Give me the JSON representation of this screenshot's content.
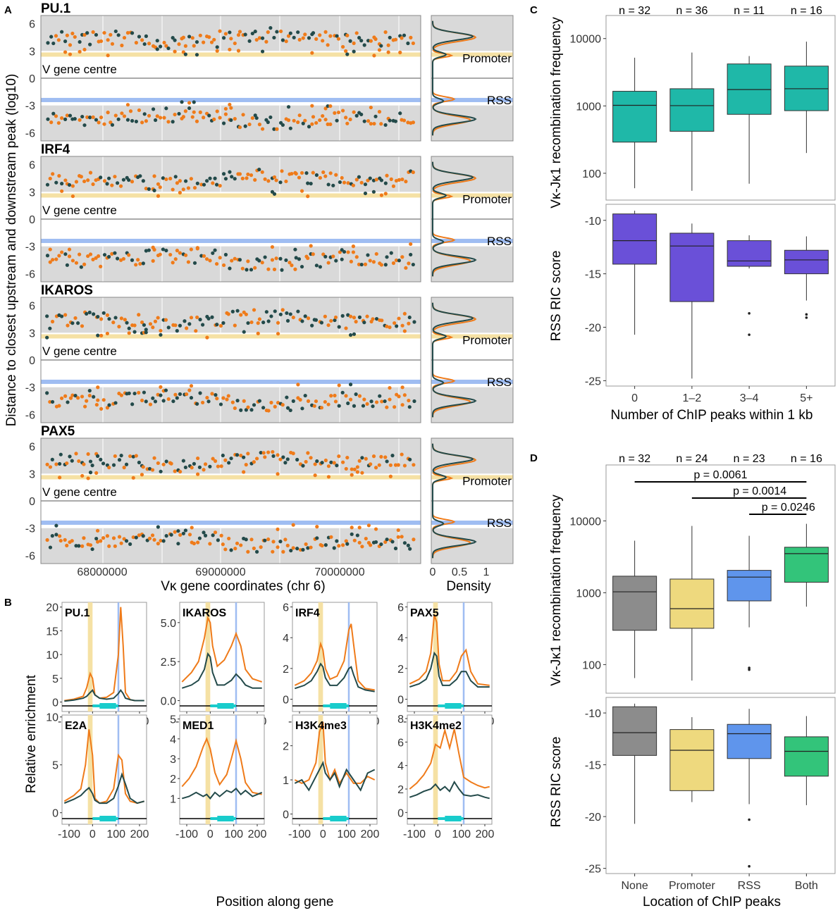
{
  "colors": {
    "orange": "#ef7b1a",
    "dark": "#234a4a",
    "promoter_band": "#f5e1a4",
    "rss_band": "#9fbdf2",
    "panel_bg": "#d9d9d9",
    "teal": "#1fb8a8",
    "purple": "#6a50d8",
    "gray": "#8c8c8c",
    "yellow": "#eed97e",
    "blue": "#5f95ec",
    "green": "#33c47a",
    "gene_bar": "#19cccc"
  },
  "panel_a": {
    "letter": "A",
    "y_axis_label": "Distance to closest upstream and downstream peak (log10)",
    "x_axis_label": "Vκ gene coordinates (chr 6)",
    "density_label": "Density",
    "x_ticks": [
      "68000000",
      "69000000",
      "70000000"
    ],
    "density_ticks": [
      "0",
      "0.5",
      "1"
    ],
    "y_ticks": [
      "6",
      "3",
      "0",
      "-3",
      "-6"
    ],
    "promoter_label": "Promoter",
    "rss_label": "RSS",
    "vgene_label": "V gene centre",
    "factors": [
      "PU.1",
      "IRF4",
      "IKAROS",
      "PAX5"
    ]
  },
  "panel_b": {
    "letter": "B",
    "y_axis_label": "Relative enrichment",
    "x_axis_label": "Position along gene",
    "x_ticks": [
      "-100",
      "0",
      "100",
      "200"
    ],
    "chart_data": [
      {
        "type": "line",
        "title": "PU.1",
        "y_ticks": [
          "0",
          "5",
          "10",
          "15",
          "20"
        ],
        "ylim": [
          -2,
          21
        ],
        "x": [
          -120,
          -80,
          -40,
          -25,
          -10,
          0,
          10,
          30,
          60,
          90,
          110,
          120,
          130,
          140,
          160,
          180,
          220
        ],
        "series": [
          {
            "name": "orange",
            "values": [
              0.3,
              0.6,
              1.2,
              3,
              6,
              5,
              1.5,
              0.8,
              1,
              2,
              10,
              20,
              12,
              2,
              0.5,
              0.3,
              0.3
            ]
          },
          {
            "name": "dark",
            "values": [
              0.2,
              0.4,
              0.8,
              1.2,
              2,
              2.5,
              1.5,
              0.8,
              0.6,
              0.8,
              1.8,
              2.5,
              1.8,
              0.8,
              0.5,
              0.3,
              0.3
            ]
          }
        ]
      },
      {
        "type": "line",
        "title": "IKAROS",
        "y_ticks": [
          "0.0",
          "2.5",
          "5.0"
        ],
        "ylim": [
          -0.7,
          6.3
        ],
        "x": [
          -120,
          -80,
          -50,
          -25,
          -10,
          0,
          10,
          30,
          60,
          90,
          110,
          130,
          150,
          180,
          220
        ],
        "series": [
          {
            "name": "orange",
            "values": [
              1.2,
              1.8,
              2.5,
              4,
              5.3,
              5,
              3.5,
              2.2,
              2.6,
              3.5,
              4.3,
              3.5,
              2,
              1.4,
              1.2
            ]
          },
          {
            "name": "dark",
            "values": [
              0.8,
              1,
              1.3,
              2,
              3,
              2.8,
              1.8,
              1,
              1,
              1.3,
              1.7,
              1.4,
              1,
              0.8,
              0.8
            ]
          }
        ]
      },
      {
        "type": "line",
        "title": "IRF4",
        "y_ticks": [
          "0",
          "2",
          "4",
          "6"
        ],
        "ylim": [
          -0.8,
          6.3
        ],
        "x": [
          -120,
          -80,
          -50,
          -25,
          -10,
          0,
          10,
          30,
          60,
          90,
          110,
          120,
          130,
          150,
          180,
          220
        ],
        "series": [
          {
            "name": "orange",
            "values": [
              0.9,
              1.2,
              1.7,
              2.5,
              3.6,
              3.2,
              2,
              1.3,
              1.5,
              2.5,
              4.5,
              4.9,
              3.6,
              1.2,
              0.7,
              0.6
            ]
          },
          {
            "name": "dark",
            "values": [
              0.7,
              0.9,
              1.2,
              1.8,
              2.3,
              2.1,
              1.4,
              0.9,
              0.9,
              1.4,
              2,
              2.1,
              1.6,
              0.8,
              0.6,
              0.5
            ]
          }
        ]
      },
      {
        "type": "line",
        "title": "PAX5",
        "y_ticks": [
          "0",
          "2",
          "4",
          "6"
        ],
        "ylim": [
          -0.8,
          6.3
        ],
        "x": [
          -120,
          -80,
          -50,
          -30,
          -15,
          -5,
          5,
          20,
          50,
          80,
          100,
          120,
          140,
          170,
          220
        ],
        "series": [
          {
            "name": "orange",
            "values": [
              1,
              1.3,
              1.8,
              3,
              5.5,
              5,
              2.3,
              1.2,
              1.2,
              1.8,
              2.8,
              3.2,
              1.8,
              1,
              0.9
            ]
          },
          {
            "name": "dark",
            "values": [
              0.8,
              1,
              1.3,
              2,
              3,
              2.8,
              1.5,
              0.9,
              0.9,
              1.3,
              1.8,
              1.8,
              1.2,
              0.8,
              0.8
            ]
          }
        ]
      },
      {
        "type": "line",
        "title": "E2A",
        "y_ticks": [
          "0",
          "5",
          "10"
        ],
        "ylim": [
          -1.2,
          10.2
        ],
        "x": [
          -120,
          -80,
          -50,
          -30,
          -15,
          0,
          10,
          30,
          60,
          90,
          110,
          125,
          140,
          160,
          190,
          220
        ],
        "series": [
          {
            "name": "orange",
            "values": [
              1.2,
              1.8,
              2.5,
              5,
              8.7,
              6,
              1.5,
              1,
              1.2,
              2.5,
              6,
              5.5,
              2,
              1.2,
              1,
              1.2
            ]
          },
          {
            "name": "dark",
            "values": [
              1,
              1.4,
              1.8,
              2.3,
              2.6,
              2,
              1.3,
              1,
              1,
              1.5,
              2.8,
              4,
              3,
              1.5,
              1,
              1.2
            ]
          }
        ]
      },
      {
        "type": "line",
        "title": "MED1",
        "y_ticks": [
          "1",
          "2",
          "3",
          "4",
          "5"
        ],
        "ylim": [
          -0.3,
          5.2
        ],
        "x": [
          -120,
          -90,
          -60,
          -30,
          -15,
          0,
          20,
          40,
          70,
          90,
          110,
          130,
          150,
          180,
          220
        ],
        "series": [
          {
            "name": "orange",
            "values": [
              1.6,
              2,
              2.6,
              3.6,
              4,
              3.5,
              2.3,
              1.7,
              2.2,
              3,
              3.9,
              3,
              1.8,
              1.3,
              1.2
            ]
          },
          {
            "name": "dark",
            "values": [
              1,
              1.1,
              1.3,
              1.1,
              1.2,
              1,
              1.3,
              1.1,
              1.4,
              1.3,
              1.5,
              1.2,
              1.4,
              1.1,
              1.3
            ]
          }
        ]
      },
      {
        "type": "line",
        "title": "H3K4me3",
        "y_ticks": [
          "0",
          "1",
          "2"
        ],
        "ylim": [
          -0.3,
          2.9
        ],
        "x": [
          -120,
          -90,
          -60,
          -30,
          -15,
          0,
          10,
          30,
          50,
          70,
          100,
          130,
          160,
          190,
          220
        ],
        "series": [
          {
            "name": "orange",
            "values": [
              1,
              0.9,
              1,
              1.5,
              2.4,
              2.7,
              1.5,
              1,
              1.3,
              0.9,
              1.2,
              0.9,
              0.9,
              1.1,
              1
            ]
          },
          {
            "name": "dark",
            "values": [
              0.9,
              1,
              0.7,
              1.1,
              1.3,
              1.5,
              1.2,
              1,
              1.2,
              0.8,
              1.3,
              1,
              0.7,
              1.2,
              1.3
            ]
          }
        ]
      },
      {
        "type": "line",
        "title": "H3K4me2",
        "y_ticks": [
          "0",
          "2",
          "4",
          "6",
          "8"
        ],
        "ylim": [
          -1,
          8.3
        ],
        "x": [
          -120,
          -90,
          -60,
          -30,
          -10,
          10,
          30,
          50,
          70,
          90,
          110,
          140,
          170,
          200,
          220
        ],
        "series": [
          {
            "name": "orange",
            "values": [
              2,
              2.5,
              3.2,
              4.2,
              5.8,
              5.5,
              7,
              5.5,
              7.1,
              5,
              3,
              2.6,
              2.3,
              2.1,
              2.2
            ]
          },
          {
            "name": "dark",
            "values": [
              1.3,
              1.5,
              1.8,
              2,
              2.4,
              1.9,
              2.2,
              1.8,
              2.6,
              2,
              1.5,
              1.4,
              1.5,
              1.3,
              1.2
            ]
          }
        ]
      }
    ]
  },
  "panel_c": {
    "letter": "C",
    "x_axis_label": "Number of ChIP peaks within 1 kb",
    "top_y_label": "Vκ-Jκ1 recombination frequency",
    "bottom_y_label": "RSS RIC score",
    "top_y_ticks": [
      "100",
      "1000",
      "10000"
    ],
    "bottom_y_ticks": [
      "-10",
      "-15",
      "-20",
      "-25"
    ],
    "chart_data": {
      "type": "box",
      "categories": [
        "0",
        "1–2",
        "3–4",
        "5+"
      ],
      "n_labels": [
        "n = 32",
        "n = 36",
        "n = 11",
        "n = 16"
      ],
      "top": {
        "scale": "log10",
        "ylim": [
          40,
          22000
        ],
        "boxes": [
          {
            "whisker_low": 60,
            "q1": 290,
            "median": 1020,
            "q3": 1650,
            "whisker_high": 5200,
            "outliers": []
          },
          {
            "whisker_low": 55,
            "q1": 420,
            "median": 1010,
            "q3": 1800,
            "whisker_high": 6200,
            "outliers": []
          },
          {
            "whisker_low": 70,
            "q1": 750,
            "median": 1750,
            "q3": 4200,
            "whisker_high": 5500,
            "outliers": []
          },
          {
            "whisker_low": 200,
            "q1": 850,
            "median": 1800,
            "q3": 3900,
            "whisker_high": 9000,
            "outliers": []
          }
        ]
      },
      "bottom": {
        "scale": "linear",
        "ylim": [
          -25.5,
          -8.5
        ],
        "boxes": [
          {
            "whisker_low": -20.7,
            "q1": -14.1,
            "median": -11.9,
            "q3": -9.4,
            "whisker_high": -9.1,
            "outliers": []
          },
          {
            "whisker_low": -24.8,
            "q1": -17.6,
            "median": -12.4,
            "q3": -11.2,
            "whisker_high": -10.3,
            "outliers": []
          },
          {
            "whisker_low": -14.5,
            "q1": -14.3,
            "median": -13.8,
            "q3": -11.9,
            "whisker_high": -11.4,
            "outliers": [
              -18.7,
              -20.7
            ]
          },
          {
            "whisker_low": -17.5,
            "q1": -15.0,
            "median": -13.7,
            "q3": -12.8,
            "whisker_high": -11.5,
            "outliers": [
              -18.8,
              -19.1
            ]
          }
        ]
      }
    }
  },
  "panel_d": {
    "letter": "D",
    "x_axis_label": "Location of ChIP peaks",
    "top_y_label": "Vκ-Jκ1 recombination frequency",
    "bottom_y_label": "RSS RIC score",
    "top_y_ticks": [
      "100",
      "1000",
      "10000"
    ],
    "bottom_y_ticks": [
      "-10",
      "-15",
      "-20",
      "-25"
    ],
    "p_values": [
      "p = 0.0061",
      "p = 0.0014",
      "p = 0.0246"
    ],
    "chart_data": {
      "type": "box",
      "categories": [
        "None",
        "Promoter",
        "RSS",
        "Both"
      ],
      "n_labels": [
        "n = 32",
        "n = 24",
        "n = 23",
        "n = 16"
      ],
      "top": {
        "scale": "log10",
        "ylim": [
          40,
          60000
        ],
        "boxes": [
          {
            "whisker_low": 65,
            "q1": 300,
            "median": 1030,
            "q3": 1700,
            "whisker_high": 5300,
            "outliers": []
          },
          {
            "whisker_low": 60,
            "q1": 320,
            "median": 600,
            "q3": 1550,
            "whisker_high": 8500,
            "outliers": []
          },
          {
            "whisker_low": 330,
            "q1": 770,
            "median": 1650,
            "q3": 2050,
            "whisker_high": 6200,
            "outliers": [
              90,
              85
            ]
          },
          {
            "whisker_low": 640,
            "q1": 1400,
            "median": 3500,
            "q3": 4300,
            "whisker_high": 9100,
            "outliers": []
          }
        ]
      },
      "bottom": {
        "scale": "linear",
        "ylim": [
          -25.5,
          -8.5
        ],
        "boxes": [
          {
            "whisker_low": -20.7,
            "q1": -14.1,
            "median": -11.9,
            "q3": -9.4,
            "whisker_high": -9.1,
            "outliers": []
          },
          {
            "whisker_low": -18.6,
            "q1": -17.5,
            "median": -13.6,
            "q3": -11.6,
            "whisker_high": -10.4,
            "outliers": []
          },
          {
            "whisker_low": -18.8,
            "q1": -14.4,
            "median": -12.0,
            "q3": -11.1,
            "whisker_high": -9.6,
            "outliers": [
              -20.3,
              -24.8
            ]
          },
          {
            "whisker_low": -18.9,
            "q1": -16.1,
            "median": -13.7,
            "q3": -12.3,
            "whisker_high": -10.3,
            "outliers": []
          }
        ]
      }
    }
  }
}
